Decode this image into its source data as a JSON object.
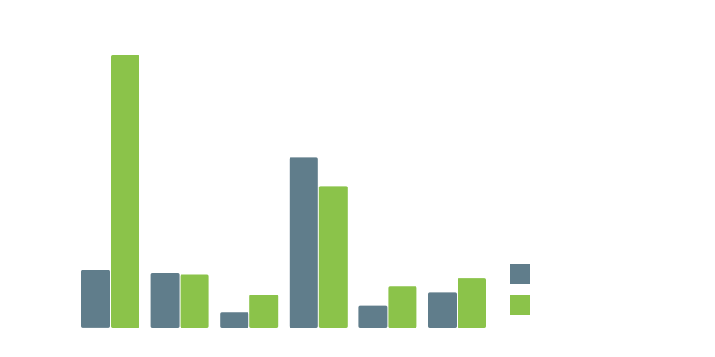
{
  "chart_data": {
    "type": "bar",
    "title": "",
    "xlabel": "",
    "ylabel": "",
    "categories": [
      "",
      "",
      "",
      "",
      "",
      ""
    ],
    "ylim": [
      0,
      100
    ],
    "grid": false,
    "legend_position": "right",
    "series": [
      {
        "name": "",
        "color": "#607d8b",
        "values": [
          21,
          20,
          5.5,
          62.5,
          8,
          13
        ]
      },
      {
        "name": "",
        "color": "#8bc34a",
        "values": [
          100,
          19.5,
          12,
          52,
          15,
          18
        ]
      }
    ]
  }
}
